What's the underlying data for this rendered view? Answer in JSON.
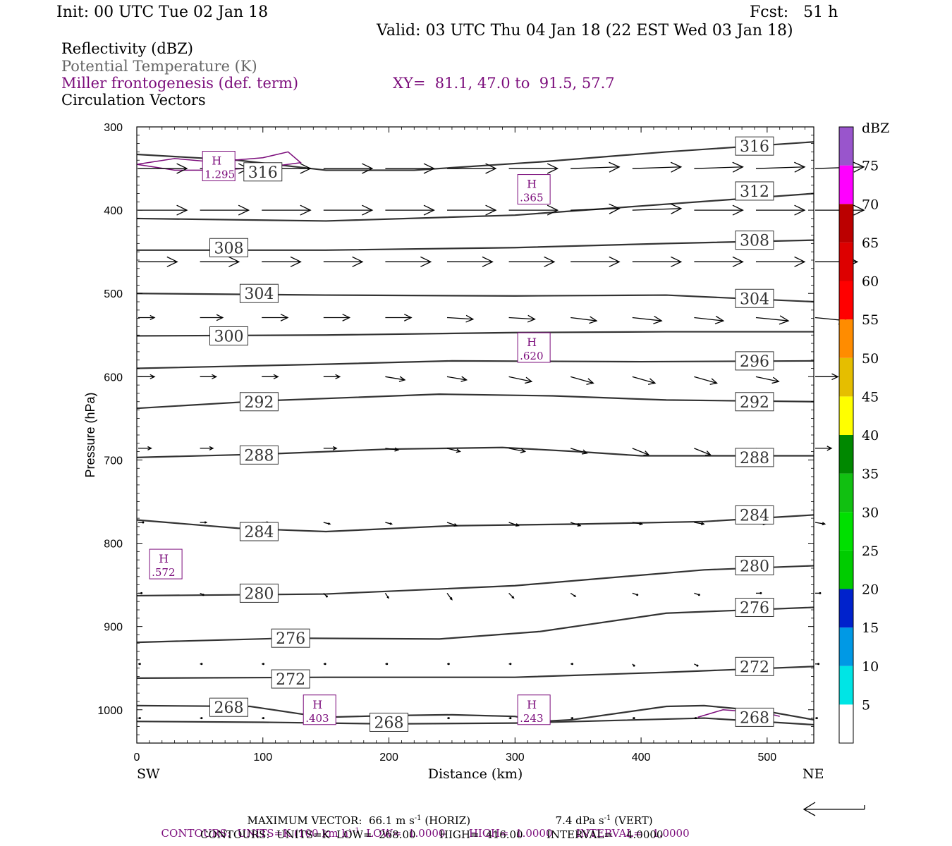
{
  "header": {
    "init": "Init: 00 UTC Tue 02 Jan 18",
    "fcst": "Fcst:   51 h",
    "valid": "Valid: 03 UTC Thu 04 Jan 18 (22 EST Wed 03 Jan 18)",
    "fields": [
      {
        "label": "Reflectivity (dBZ)",
        "color": "#000000"
      },
      {
        "label": "Potential Temperature (K)",
        "color": "#666666"
      },
      {
        "label": "Miller frontogenesis (def. term)",
        "color": "#7b0c7b"
      },
      {
        "label": "Circulation Vectors",
        "color": "#000000"
      }
    ],
    "xy": "XY=  81.1, 47.0 to  91.5, 57.7"
  },
  "footer": {
    "maxvec_label": "MAXIMUM VECTOR:",
    "maxvec_horiz": "66.1 m s",
    "maxvec_horiz_exp": "-1",
    "maxvec_horiz_tag": "(HORIZ)",
    "maxvec_vert": "7.4 dPa s",
    "maxvec_vert_exp": "-1",
    "maxvec_vert_tag": "(VERT)",
    "contours1_a": "CONTOURS:  UNITS=K (100 km h)",
    "contours1_exp": "-1",
    "contours1_b": "  LOW=  1.0000       HIGH=  1.0000       INTERVAL=   1.0000",
    "contours2": "CONTOURS:  UNITS=K  LOW=  268.00       HIGH=  416.00       INTERVAL=    4.0000"
  },
  "chart_data": {
    "type": "line",
    "xlabel": "Distance (km)",
    "ylabel": "Pressure (hPa)",
    "xlim": [
      0,
      537
    ],
    "ylim": [
      1040,
      300
    ],
    "xticks": [
      0,
      100,
      200,
      300,
      400,
      500
    ],
    "yticks": [
      300,
      400,
      500,
      600,
      700,
      800,
      900,
      1000
    ],
    "x_end_labels": {
      "left": "SW",
      "right": "NE"
    },
    "theta_color": "#333333",
    "frontogenesis_color": "#7b0c7b",
    "isentropes": [
      {
        "theta": 316,
        "points": [
          [
            0,
            333
          ],
          [
            80,
            340
          ],
          [
            150,
            352
          ],
          [
            220,
            352
          ],
          [
            320,
            342
          ],
          [
            420,
            330
          ],
          [
            537,
            318
          ]
        ],
        "labels": [
          [
            100,
            354
          ],
          [
            490,
            323
          ]
        ]
      },
      {
        "theta": 312,
        "points": [
          [
            0,
            410
          ],
          [
            150,
            413
          ],
          [
            300,
            406
          ],
          [
            400,
            395
          ],
          [
            537,
            380
          ]
        ],
        "labels": [
          [
            490,
            377
          ]
        ]
      },
      {
        "theta": 308,
        "points": [
          [
            0,
            448
          ],
          [
            150,
            448
          ],
          [
            300,
            445
          ],
          [
            420,
            440
          ],
          [
            537,
            436
          ]
        ],
        "labels": [
          [
            73,
            445
          ],
          [
            490,
            436
          ]
        ]
      },
      {
        "theta": 304,
        "points": [
          [
            0,
            500
          ],
          [
            150,
            502
          ],
          [
            300,
            503
          ],
          [
            420,
            502
          ],
          [
            537,
            510
          ]
        ],
        "labels": [
          [
            97,
            500
          ],
          [
            490,
            506
          ]
        ]
      },
      {
        "theta": 300,
        "points": [
          [
            0,
            551
          ],
          [
            150,
            550
          ],
          [
            300,
            547
          ],
          [
            420,
            546
          ],
          [
            537,
            546
          ]
        ],
        "labels": [
          [
            73,
            551
          ]
        ]
      },
      {
        "theta": 296,
        "points": [
          [
            0,
            590
          ],
          [
            150,
            585
          ],
          [
            250,
            581
          ],
          [
            400,
            582
          ],
          [
            537,
            581
          ]
        ],
        "labels": [
          [
            490,
            581
          ]
        ]
      },
      {
        "theta": 292,
        "points": [
          [
            0,
            638
          ],
          [
            100,
            629
          ],
          [
            240,
            621
          ],
          [
            330,
            623
          ],
          [
            420,
            628
          ],
          [
            537,
            630
          ]
        ],
        "labels": [
          [
            97,
            630
          ],
          [
            490,
            630
          ]
        ]
      },
      {
        "theta": 288,
        "points": [
          [
            0,
            697
          ],
          [
            100,
            693
          ],
          [
            200,
            687
          ],
          [
            290,
            685
          ],
          [
            350,
            690
          ],
          [
            400,
            695
          ],
          [
            537,
            695
          ]
        ],
        "labels": [
          [
            97,
            694
          ],
          [
            490,
            697
          ]
        ]
      },
      {
        "theta": 284,
        "points": [
          [
            0,
            772
          ],
          [
            80,
            782
          ],
          [
            150,
            786
          ],
          [
            250,
            779
          ],
          [
            350,
            777
          ],
          [
            450,
            774
          ],
          [
            537,
            766
          ]
        ],
        "labels": [
          [
            97,
            786
          ],
          [
            490,
            766
          ]
        ]
      },
      {
        "theta": 280,
        "points": [
          [
            0,
            863
          ],
          [
            150,
            861
          ],
          [
            300,
            851
          ],
          [
            450,
            832
          ],
          [
            537,
            827
          ]
        ],
        "labels": [
          [
            97,
            860
          ],
          [
            490,
            827
          ]
        ]
      },
      {
        "theta": 276,
        "points": [
          [
            0,
            919
          ],
          [
            120,
            914
          ],
          [
            240,
            915
          ],
          [
            320,
            906
          ],
          [
            420,
            884
          ],
          [
            537,
            877
          ]
        ],
        "labels": [
          [
            122,
            914
          ],
          [
            490,
            877
          ]
        ]
      },
      {
        "theta": 272,
        "points": [
          [
            0,
            962
          ],
          [
            150,
            961
          ],
          [
            300,
            961
          ],
          [
            420,
            955
          ],
          [
            537,
            948
          ]
        ],
        "labels": [
          [
            122,
            963
          ],
          [
            490,
            948
          ]
        ]
      },
      {
        "theta": 268,
        "points": [
          [
            0,
            995
          ],
          [
            90,
            996
          ],
          [
            130,
            1005
          ],
          [
            150,
            1009
          ],
          [
            200,
            1007
          ],
          [
            250,
            1006
          ],
          [
            300,
            1008
          ],
          [
            320,
            1014
          ],
          [
            345,
            1012
          ],
          [
            420,
            996
          ],
          [
            450,
            995
          ],
          [
            500,
            1002
          ],
          [
            537,
            1012
          ]
        ],
        "labels": [
          [
            73,
            997
          ],
          [
            200,
            1015
          ],
          [
            490,
            1009
          ]
        ]
      },
      {
        "theta": 268,
        "points": [
          [
            0,
            1014
          ],
          [
            100,
            1015
          ],
          [
            200,
            1017
          ],
          [
            300,
            1016
          ],
          [
            350,
            1014
          ],
          [
            450,
            1010
          ],
          [
            537,
            1018
          ]
        ],
        "labels": []
      }
    ],
    "frontogenesis_highs": [
      {
        "label": "H",
        "value": "1.295",
        "x": 65,
        "y": 347
      },
      {
        "label": "H",
        "value": ".365",
        "x": 315,
        "y": 375
      },
      {
        "label": "H",
        "value": ".620",
        "x": 315,
        "y": 565
      },
      {
        "label": "H",
        "value": ".572",
        "x": 23,
        "y": 825
      },
      {
        "label": "H",
        "value": ".403",
        "x": 145,
        "y": 1000
      },
      {
        "label": "H",
        "value": ".243",
        "x": 315,
        "y": 1000
      }
    ],
    "frontogenesis_contours": [
      {
        "points": [
          [
            0,
            345
          ],
          [
            30,
            338
          ],
          [
            60,
            342
          ],
          [
            100,
            337
          ],
          [
            120,
            330
          ],
          [
            130,
            343
          ],
          [
            100,
            349
          ],
          [
            60,
            352
          ],
          [
            30,
            352
          ],
          [
            0,
            345
          ]
        ]
      },
      {
        "points": [
          [
            445,
            1009
          ],
          [
            465,
            1000
          ],
          [
            500,
            1004
          ],
          [
            510,
            1008
          ]
        ]
      }
    ],
    "vector_rows": [
      {
        "p": 350,
        "u": [
          30,
          30,
          30,
          30,
          30,
          30,
          30,
          30,
          30,
          30,
          30,
          30
        ],
        "w": [
          0,
          0,
          0,
          0,
          0,
          0,
          0,
          -0.5,
          -0.5,
          -0.5,
          -0.5,
          -0.5
        ]
      },
      {
        "p": 400,
        "u": [
          30,
          30,
          30,
          30,
          30,
          30,
          30,
          30,
          30,
          30,
          30,
          30
        ],
        "w": [
          0,
          0,
          0,
          0,
          0,
          0,
          0,
          -0.5,
          -0.5,
          0,
          0,
          0
        ]
      },
      {
        "p": 462,
        "u": [
          24,
          24,
          24,
          24,
          28,
          28,
          28,
          30,
          30,
          30,
          30,
          26
        ],
        "w": [
          0,
          0,
          0,
          0,
          0,
          0,
          0,
          0,
          0,
          0,
          0,
          0
        ]
      },
      {
        "p": 529,
        "u": [
          10,
          14,
          16,
          16,
          16,
          16,
          16,
          16,
          18,
          18,
          20,
          20
        ],
        "w": [
          0,
          0,
          0,
          0,
          0,
          0.5,
          0.5,
          1,
          1,
          1,
          1,
          1
        ]
      },
      {
        "p": 600,
        "u": [
          10,
          10,
          10,
          10,
          12,
          12,
          14,
          14,
          14,
          14,
          14,
          14
        ],
        "w": [
          0,
          0,
          0,
          0,
          1,
          1,
          1.5,
          2,
          2,
          2,
          1.5,
          0
        ]
      },
      {
        "p": 686,
        "u": [
          8,
          8,
          8,
          8,
          8,
          8,
          10,
          10,
          10,
          10,
          10,
          10
        ],
        "w": [
          0,
          0,
          0,
          0,
          0.5,
          1,
          1,
          1.5,
          2,
          2,
          1.5,
          0
        ]
      },
      {
        "p": 775,
        "u": [
          3,
          4,
          4,
          4,
          4,
          6,
          6,
          6,
          6,
          6,
          6,
          6
        ],
        "w": [
          0,
          0,
          0,
          0.5,
          0.5,
          1,
          1,
          1,
          0.5,
          0.5,
          0.5,
          0.5
        ]
      },
      {
        "p": 860,
        "u": [
          2,
          2,
          2,
          2,
          2,
          3,
          3,
          3,
          3,
          3,
          3,
          3
        ],
        "w": [
          0,
          0.5,
          0.5,
          1,
          1.5,
          2,
          1.5,
          1,
          0.5,
          0.5,
          0,
          0
        ]
      },
      {
        "p": 945,
        "u": [
          1,
          1,
          1,
          1,
          1,
          1,
          1,
          1,
          1,
          2,
          2,
          2
        ],
        "w": [
          0,
          0,
          0,
          0,
          0,
          0,
          0,
          0,
          0.5,
          0.5,
          0.5,
          0
        ]
      },
      {
        "p": 1010,
        "u": [
          1,
          1,
          1,
          1,
          1,
          1,
          1,
          1,
          1,
          1,
          1,
          1
        ],
        "w": [
          0,
          0,
          0,
          0,
          0,
          0,
          0,
          0,
          0,
          0,
          0,
          0
        ]
      }
    ],
    "vector_x": [
      0,
      49,
      98,
      147,
      196,
      245,
      294,
      343,
      392,
      441,
      490,
      537
    ],
    "colorbar": {
      "title": "dBZ",
      "levels": [
        5,
        10,
        15,
        20,
        25,
        30,
        35,
        40,
        45,
        50,
        55,
        60,
        65,
        70,
        75
      ],
      "colors": [
        "#00e5e5",
        "#0099e5",
        "#0022cc",
        "#00cc00",
        "#00e000",
        "#11c011",
        "#008800",
        "#ffff00",
        "#e5be00",
        "#ff8c00",
        "#ff0000",
        "#dd0000",
        "#bb0000",
        "#ff00ff",
        "#9955cc"
      ]
    }
  }
}
